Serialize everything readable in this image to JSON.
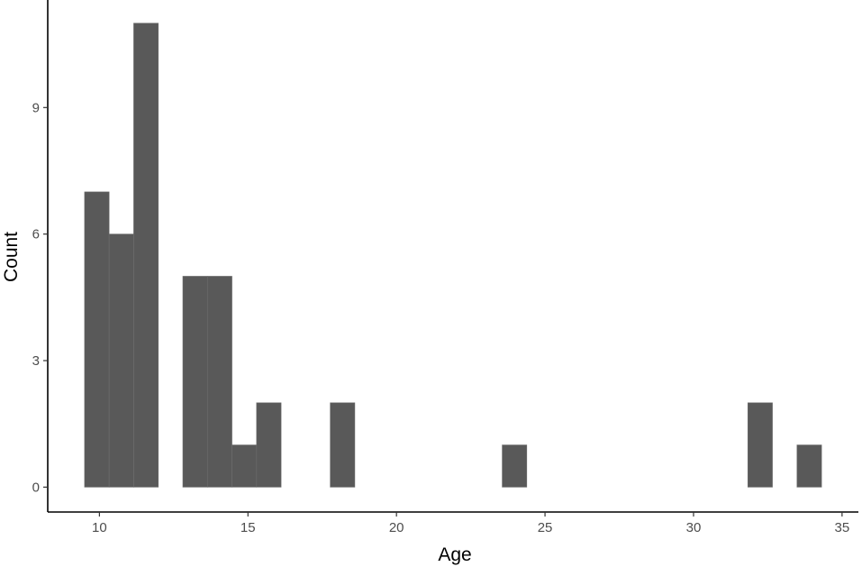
{
  "chart_data": {
    "type": "bar",
    "title": "",
    "xlabel": "Age",
    "ylabel": "Count",
    "bin_width": 0.827,
    "bars": [
      {
        "x_start": 9.5,
        "x_end": 10.327,
        "count": 7
      },
      {
        "x_start": 10.327,
        "x_end": 11.154,
        "count": 6
      },
      {
        "x_start": 11.154,
        "x_end": 11.981,
        "count": 11
      },
      {
        "x_start": 12.808,
        "x_end": 13.635,
        "count": 5
      },
      {
        "x_start": 13.635,
        "x_end": 14.462,
        "count": 5
      },
      {
        "x_start": 14.462,
        "x_end": 15.289,
        "count": 1
      },
      {
        "x_start": 15.289,
        "x_end": 16.116,
        "count": 2
      },
      {
        "x_start": 17.77,
        "x_end": 18.597,
        "count": 2
      },
      {
        "x_start": 23.559,
        "x_end": 24.386,
        "count": 1
      },
      {
        "x_start": 31.829,
        "x_end": 32.656,
        "count": 2
      },
      {
        "x_start": 33.483,
        "x_end": 34.31,
        "count": 1
      }
    ],
    "xlim": [
      8.26,
      35.55
    ],
    "ylim": [
      -0.59,
      11.55
    ],
    "x_ticks": [
      10,
      15,
      20,
      25,
      30,
      35
    ],
    "y_ticks": [
      0,
      3,
      6,
      9
    ],
    "x_tick_labels": [
      "10",
      "15",
      "20",
      "25",
      "30",
      "35"
    ],
    "y_tick_labels": [
      "0",
      "3",
      "6",
      "9"
    ],
    "bar_color": "#595959",
    "bar_edge_color": "#6e6e6e",
    "grid": false,
    "legend": "none"
  }
}
